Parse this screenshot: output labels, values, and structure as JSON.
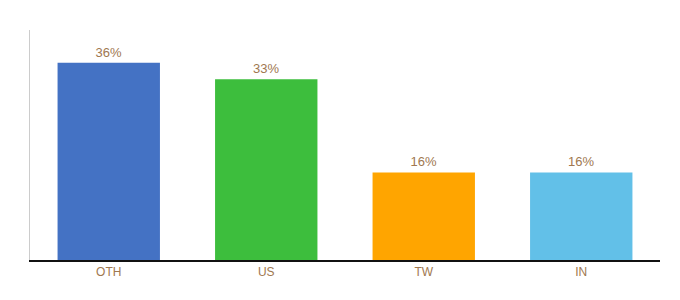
{
  "chart_data": {
    "type": "bar",
    "categories": [
      "OTH",
      "US",
      "TW",
      "IN"
    ],
    "values": [
      36,
      33,
      16,
      16
    ],
    "value_labels": [
      "36%",
      "33%",
      "16%",
      "16%"
    ],
    "colors": [
      "#4472C4",
      "#3DBE3D",
      "#FFA500",
      "#62C0E8"
    ],
    "data_labels": true,
    "ylim": [
      0,
      42
    ],
    "tick_labels": "x",
    "grid": false
  }
}
